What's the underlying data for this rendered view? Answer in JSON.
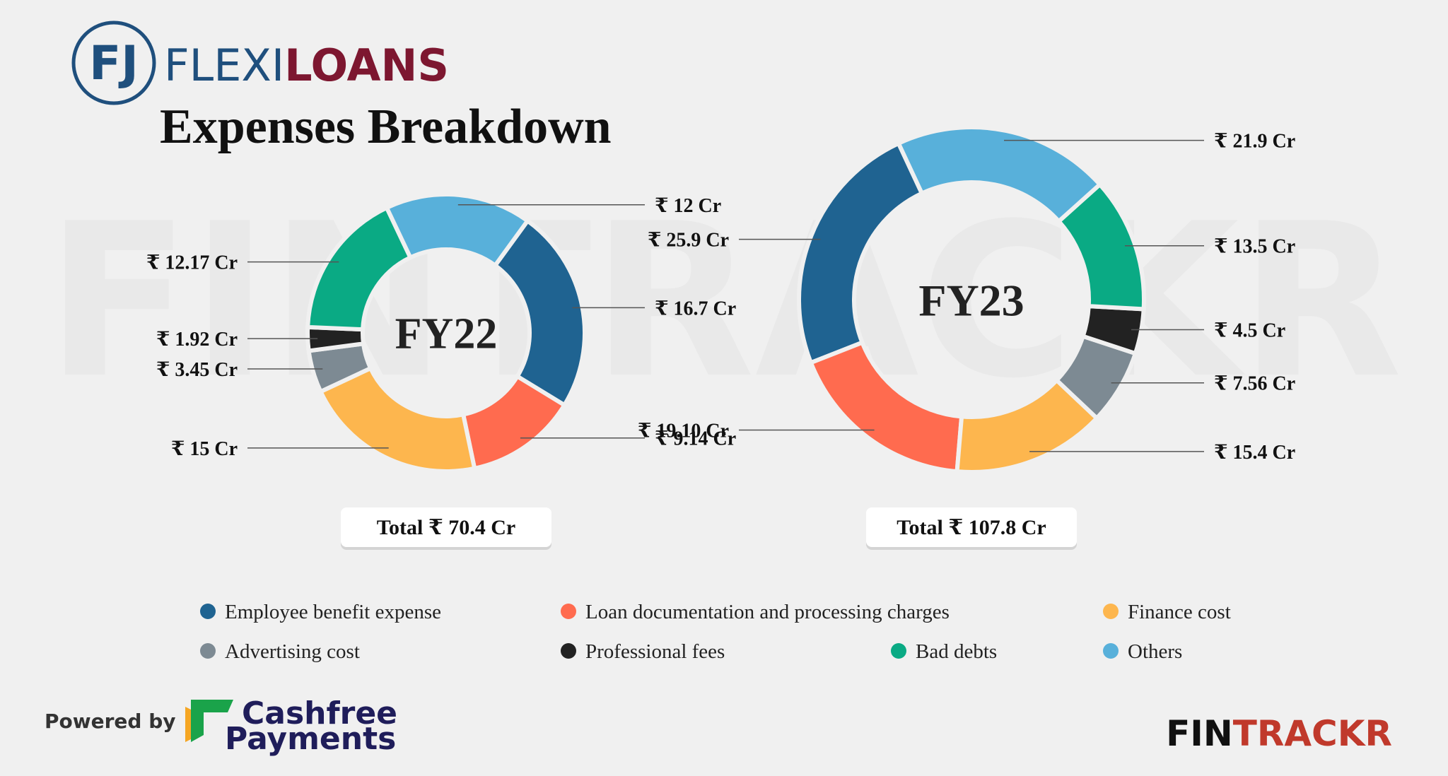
{
  "brand": {
    "mark": "FJ",
    "part1": "FLEXI",
    "part2": "LOANS"
  },
  "title": "Expenses Breakdown",
  "footer": {
    "powered_by": "Powered by",
    "sponsor_line1": "Cashfree",
    "sponsor_line2": "Payments",
    "brand_part1": "FIN",
    "brand_part2": "TRACKR"
  },
  "chart_data": [
    {
      "type": "donut",
      "title": "FY22",
      "total_label": "Total ₹ 70.4 Cr",
      "categories": [
        "Employee benefit expense",
        "Loan documentation and processing charges",
        "Finance cost",
        "Advertising cost",
        "Professional fees",
        "Bad debts",
        "Others"
      ],
      "colors": [
        "#1f6391",
        "#ff6b4f",
        "#fdb64e",
        "#7d8a93",
        "#222222",
        "#0aaa84",
        "#58b0da"
      ],
      "values": [
        16.7,
        9.14,
        15,
        3.45,
        1.92,
        12.17,
        12
      ],
      "value_labels": [
        "₹ 16.7 Cr",
        "₹ 9.14 Cr",
        "₹ 15 Cr",
        "₹ 3.45 Cr",
        "₹ 1.92 Cr",
        "₹ 12.17 Cr",
        "₹ 12 Cr"
      ]
    },
    {
      "type": "donut",
      "title": "FY23",
      "total_label": "Total ₹ 107.8 Cr",
      "categories": [
        "Employee benefit expense",
        "Loan documentation and processing charges",
        "Finance cost",
        "Advertising cost",
        "Professional fees",
        "Bad debts",
        "Others"
      ],
      "colors": [
        "#1f6391",
        "#ff6b4f",
        "#fdb64e",
        "#7d8a93",
        "#222222",
        "#0aaa84",
        "#58b0da"
      ],
      "values": [
        25.9,
        19.1,
        15.4,
        7.56,
        4.5,
        13.5,
        21.9
      ],
      "value_labels": [
        "₹ 25.9 Cr",
        "₹ 19.10 Cr",
        "₹ 15.4 Cr",
        "₹ 7.56 Cr",
        "₹ 4.5 Cr",
        "₹ 13.5 Cr",
        "₹ 21.9 Cr"
      ]
    }
  ]
}
